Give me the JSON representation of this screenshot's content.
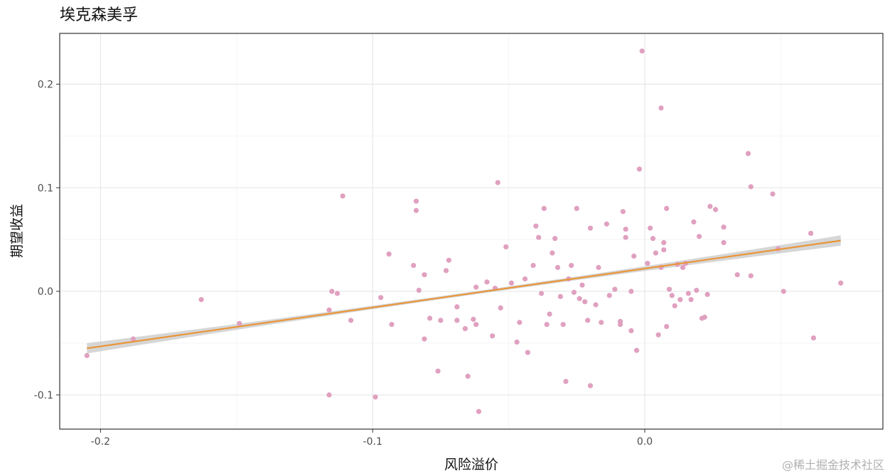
{
  "chart_data": {
    "type": "scatter",
    "title": "埃克森美孚",
    "xlabel": "风险溢价",
    "ylabel": "期望收益",
    "xlim": [
      -0.215,
      0.0875
    ],
    "ylim": [
      -0.133,
      0.249
    ],
    "x_ticks": [
      -0.2,
      -0.1,
      0.0
    ],
    "x_tick_labels": [
      "-0.2",
      "-0.1",
      "0.0"
    ],
    "y_ticks": [
      -0.1,
      0.0,
      0.1,
      0.2
    ],
    "y_tick_labels": [
      "-0.1",
      "0.0",
      "0.1",
      "0.2"
    ],
    "grid": true,
    "point_color": "#e0a0c0",
    "fit_line_color": "#e8953a",
    "confidence_band_color": "#c8c8c8",
    "fit_line": {
      "x": [
        -0.205,
        0.072
      ],
      "y": [
        -0.055,
        0.049
      ]
    },
    "points": [
      {
        "x": -0.205,
        "y": -0.062
      },
      {
        "x": -0.188,
        "y": -0.046
      },
      {
        "x": -0.163,
        "y": -0.008
      },
      {
        "x": -0.149,
        "y": -0.031
      },
      {
        "x": -0.116,
        "y": -0.1
      },
      {
        "x": -0.116,
        "y": -0.018
      },
      {
        "x": -0.115,
        "y": 0.0
      },
      {
        "x": -0.113,
        "y": -0.002
      },
      {
        "x": -0.111,
        "y": 0.092
      },
      {
        "x": -0.108,
        "y": -0.028
      },
      {
        "x": -0.099,
        "y": -0.102
      },
      {
        "x": -0.097,
        "y": -0.006
      },
      {
        "x": -0.094,
        "y": 0.036
      },
      {
        "x": -0.093,
        "y": -0.032
      },
      {
        "x": -0.085,
        "y": 0.025
      },
      {
        "x": -0.084,
        "y": 0.087
      },
      {
        "x": -0.084,
        "y": 0.078
      },
      {
        "x": -0.083,
        "y": 0.001
      },
      {
        "x": -0.081,
        "y": 0.016
      },
      {
        "x": -0.081,
        "y": -0.046
      },
      {
        "x": -0.079,
        "y": -0.026
      },
      {
        "x": -0.076,
        "y": -0.077
      },
      {
        "x": -0.075,
        "y": -0.028
      },
      {
        "x": -0.073,
        "y": 0.02
      },
      {
        "x": -0.072,
        "y": 0.03
      },
      {
        "x": -0.069,
        "y": -0.015
      },
      {
        "x": -0.069,
        "y": -0.028
      },
      {
        "x": -0.066,
        "y": -0.036
      },
      {
        "x": -0.065,
        "y": -0.082
      },
      {
        "x": -0.063,
        "y": -0.027
      },
      {
        "x": -0.062,
        "y": -0.032
      },
      {
        "x": -0.062,
        "y": 0.004
      },
      {
        "x": -0.061,
        "y": -0.116
      },
      {
        "x": -0.058,
        "y": 0.009
      },
      {
        "x": -0.056,
        "y": -0.043
      },
      {
        "x": -0.055,
        "y": 0.003
      },
      {
        "x": -0.054,
        "y": 0.105
      },
      {
        "x": -0.053,
        "y": -0.016
      },
      {
        "x": -0.051,
        "y": 0.043
      },
      {
        "x": -0.049,
        "y": 0.008
      },
      {
        "x": -0.047,
        "y": -0.049
      },
      {
        "x": -0.046,
        "y": -0.03
      },
      {
        "x": -0.044,
        "y": 0.012
      },
      {
        "x": -0.043,
        "y": -0.059
      },
      {
        "x": -0.041,
        "y": 0.025
      },
      {
        "x": -0.04,
        "y": 0.063
      },
      {
        "x": -0.039,
        "y": 0.052
      },
      {
        "x": -0.038,
        "y": -0.002
      },
      {
        "x": -0.037,
        "y": 0.08
      },
      {
        "x": -0.036,
        "y": -0.032
      },
      {
        "x": -0.035,
        "y": -0.022
      },
      {
        "x": -0.034,
        "y": 0.037
      },
      {
        "x": -0.033,
        "y": 0.051
      },
      {
        "x": -0.032,
        "y": 0.023
      },
      {
        "x": -0.031,
        "y": -0.005
      },
      {
        "x": -0.03,
        "y": -0.032
      },
      {
        "x": -0.029,
        "y": -0.087
      },
      {
        "x": -0.028,
        "y": 0.012
      },
      {
        "x": -0.027,
        "y": 0.025
      },
      {
        "x": -0.026,
        "y": -0.001
      },
      {
        "x": -0.025,
        "y": 0.08
      },
      {
        "x": -0.024,
        "y": -0.007
      },
      {
        "x": -0.023,
        "y": 0.006
      },
      {
        "x": -0.022,
        "y": -0.01
      },
      {
        "x": -0.021,
        "y": -0.028
      },
      {
        "x": -0.02,
        "y": 0.061
      },
      {
        "x": -0.02,
        "y": -0.091
      },
      {
        "x": -0.018,
        "y": -0.013
      },
      {
        "x": -0.017,
        "y": 0.023
      },
      {
        "x": -0.016,
        "y": -0.03
      },
      {
        "x": -0.014,
        "y": 0.065
      },
      {
        "x": -0.013,
        "y": -0.004
      },
      {
        "x": -0.011,
        "y": 0.002
      },
      {
        "x": -0.009,
        "y": -0.032
      },
      {
        "x": -0.009,
        "y": -0.029
      },
      {
        "x": -0.008,
        "y": 0.077
      },
      {
        "x": -0.007,
        "y": 0.06
      },
      {
        "x": -0.007,
        "y": 0.052
      },
      {
        "x": -0.005,
        "y": 0.0
      },
      {
        "x": -0.005,
        "y": -0.038
      },
      {
        "x": -0.004,
        "y": 0.034
      },
      {
        "x": -0.003,
        "y": -0.057
      },
      {
        "x": -0.002,
        "y": 0.118
      },
      {
        "x": -0.001,
        "y": 0.232
      },
      {
        "x": 0.001,
        "y": 0.027
      },
      {
        "x": 0.002,
        "y": 0.061
      },
      {
        "x": 0.003,
        "y": 0.051
      },
      {
        "x": 0.004,
        "y": 0.037
      },
      {
        "x": 0.005,
        "y": -0.042
      },
      {
        "x": 0.006,
        "y": 0.177
      },
      {
        "x": 0.006,
        "y": 0.023
      },
      {
        "x": 0.007,
        "y": 0.047
      },
      {
        "x": 0.007,
        "y": 0.04
      },
      {
        "x": 0.008,
        "y": 0.08
      },
      {
        "x": 0.008,
        "y": -0.034
      },
      {
        "x": 0.009,
        "y": 0.002
      },
      {
        "x": 0.01,
        "y": -0.004
      },
      {
        "x": 0.011,
        "y": -0.014
      },
      {
        "x": 0.012,
        "y": 0.026
      },
      {
        "x": 0.013,
        "y": -0.008
      },
      {
        "x": 0.014,
        "y": 0.023
      },
      {
        "x": 0.015,
        "y": 0.027
      },
      {
        "x": 0.016,
        "y": -0.002
      },
      {
        "x": 0.017,
        "y": -0.008
      },
      {
        "x": 0.018,
        "y": 0.067
      },
      {
        "x": 0.019,
        "y": 0.001
      },
      {
        "x": 0.02,
        "y": 0.053
      },
      {
        "x": 0.021,
        "y": -0.026
      },
      {
        "x": 0.022,
        "y": -0.025
      },
      {
        "x": 0.023,
        "y": -0.003
      },
      {
        "x": 0.024,
        "y": 0.082
      },
      {
        "x": 0.026,
        "y": 0.079
      },
      {
        "x": 0.029,
        "y": 0.062
      },
      {
        "x": 0.029,
        "y": 0.047
      },
      {
        "x": 0.034,
        "y": 0.016
      },
      {
        "x": 0.038,
        "y": 0.133
      },
      {
        "x": 0.039,
        "y": 0.101
      },
      {
        "x": 0.039,
        "y": 0.015
      },
      {
        "x": 0.047,
        "y": 0.094
      },
      {
        "x": 0.049,
        "y": 0.041
      },
      {
        "x": 0.051,
        "y": 0.0
      },
      {
        "x": 0.061,
        "y": 0.056
      },
      {
        "x": 0.062,
        "y": -0.045
      },
      {
        "x": 0.072,
        "y": 0.008
      }
    ]
  },
  "watermark": "@稀土掘金技术社区"
}
